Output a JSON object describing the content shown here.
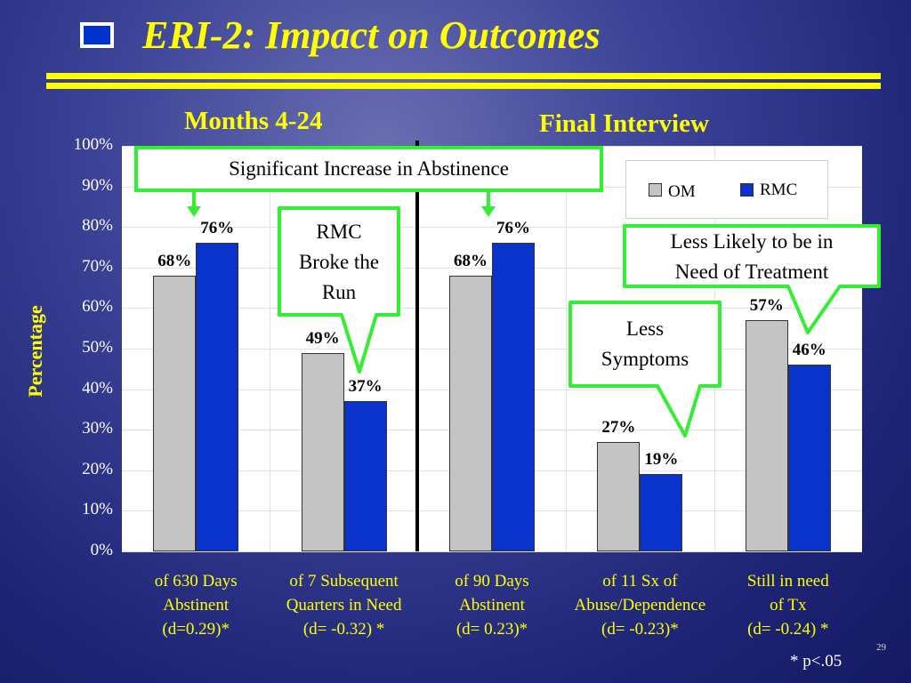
{
  "slide": {
    "title": "ERI-2:  Impact on Outcomes",
    "section_left": "Months 4-24",
    "section_right": "Final Interview",
    "footnote": "* p<.05",
    "page_number": "29"
  },
  "colors": {
    "om": "#c4c4c4",
    "rmc": "#0a33cc",
    "accent": "#ffff00",
    "callout_border": "#33ee33"
  },
  "callouts": {
    "abstinence": "Significant Increase in Abstinence",
    "broke_line1": "RMC",
    "broke_line2": "Broke the",
    "broke_line3": "Run",
    "treatment_line1": "Less Likely to be in",
    "treatment_line2": "Need of Treatment",
    "symptoms_line1": "Less",
    "symptoms_line2": "Symptoms"
  },
  "chart_data": {
    "type": "bar",
    "ylabel": "Percentage",
    "ylim": [
      0,
      100
    ],
    "yticks": [
      "0%",
      "10%",
      "20%",
      "30%",
      "40%",
      "50%",
      "60%",
      "70%",
      "80%",
      "90%",
      "100%"
    ],
    "legend_position": "top-right",
    "categories": [
      [
        "of 630 Days",
        "Abstinent",
        "(d=0.29)*"
      ],
      [
        "of 7 Subsequent",
        "Quarters in Need",
        "(d= -0.32) *"
      ],
      [
        "of 90 Days",
        "Abstinent",
        "(d= 0.23)*"
      ],
      [
        "of 11 Sx of",
        "Abuse/Dependence",
        "(d= -0.23)*"
      ],
      [
        "Still in need",
        "of Tx",
        "(d= -0.24) *"
      ]
    ],
    "series": [
      {
        "name": "OM",
        "values": [
          68,
          49,
          68,
          27,
          57
        ],
        "labels": [
          "68%",
          "49%",
          "68%",
          "27%",
          "57%"
        ]
      },
      {
        "name": "RMC",
        "values": [
          76,
          37,
          76,
          19,
          46
        ],
        "labels": [
          "76%",
          "37%",
          "76%",
          "19%",
          "46%"
        ]
      }
    ]
  }
}
